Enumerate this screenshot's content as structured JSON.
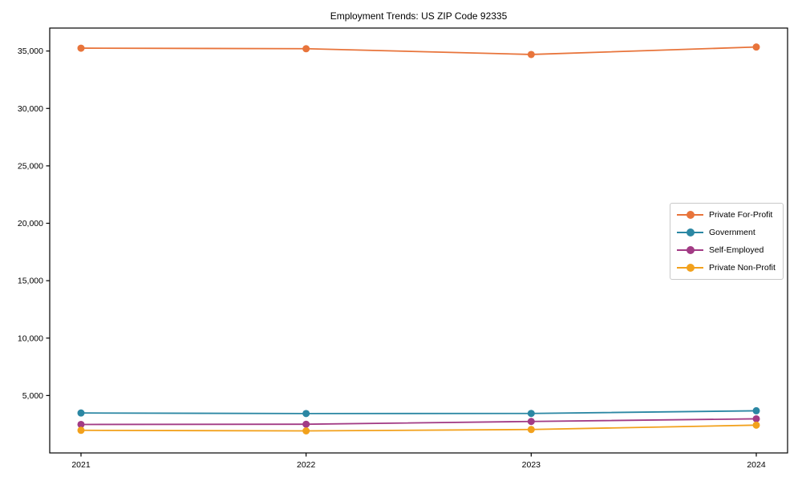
{
  "chart_data": {
    "type": "line",
    "title": "Employment Trends: US ZIP Code 92335",
    "categories": [
      "2021",
      "2022",
      "2023",
      "2024"
    ],
    "series": [
      {
        "name": "Private For-Profit",
        "color": "#E8743B",
        "values": [
          35250,
          35200,
          34700,
          35350
        ]
      },
      {
        "name": "Government",
        "color": "#2B87A3",
        "values": [
          3480,
          3430,
          3440,
          3670
        ]
      },
      {
        "name": "Self-Employed",
        "color": "#A23B85",
        "values": [
          2480,
          2500,
          2740,
          2970
        ]
      },
      {
        "name": "Private Non-Profit",
        "color": "#F2A11C",
        "values": [
          1970,
          1920,
          2040,
          2420
        ]
      }
    ],
    "xlabel": "",
    "ylabel": "",
    "ylim": [
      0,
      37000
    ],
    "yticks": [
      5000,
      10000,
      15000,
      20000,
      25000,
      30000,
      35000
    ],
    "ytick_labels": [
      "5,000",
      "10,000",
      "15,000",
      "20,000",
      "25,000",
      "30,000",
      "35,000"
    ],
    "grid": false,
    "legend_position": "center-right",
    "marker": "circle",
    "axis_color": "#000000"
  }
}
